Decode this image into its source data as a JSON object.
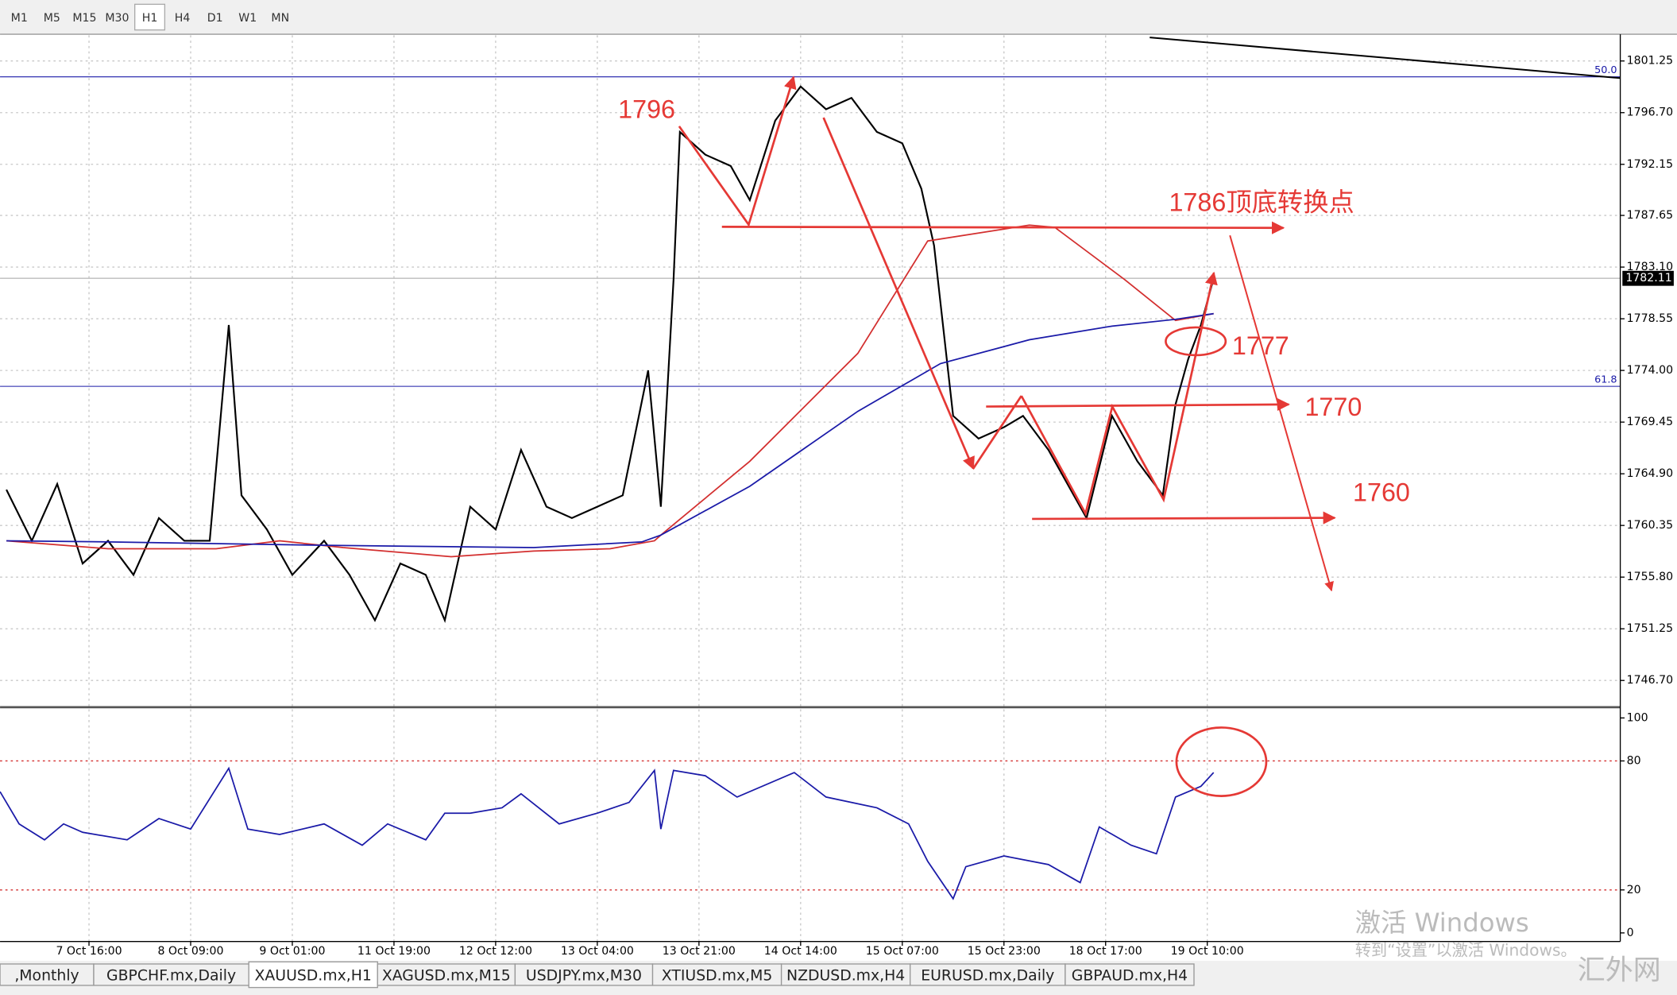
{
  "toolbar": {
    "timeframes": [
      "M1",
      "M5",
      "M15",
      "M30",
      "H1",
      "H4",
      "D1",
      "W1",
      "MN"
    ],
    "active": 4
  },
  "tabs": {
    "items": [
      ",Monthly",
      "GBPCHF.mx,Daily",
      "XAUUSD.mx,H1",
      "XAGUSD.mx,M15",
      "USDJPY.mx,M30",
      "XTIUSD.mx,M5",
      "NZDUSD.mx,H4",
      "EURUSD.mx,Daily",
      "GBPAUD.mx,H4"
    ],
    "active": 2
  },
  "watermark": {
    "line1": "激活 Windows",
    "line2": "转到“设置”以激活 Windows。",
    "brand": "汇外网"
  },
  "chart_data": [
    {
      "type": "line",
      "xlim": [
        -14,
        241
      ],
      "ylim": [
        1744.44,
        1803.51
      ],
      "yticks": [
        1801.25,
        {
          "value": 1796.7,
          "label": "1796.70"
        },
        1792.15,
        1787.65,
        {
          "value": 1783.1,
          "label": "1783.10"
        },
        1778.55,
        {
          "value": 1774.0,
          "label": "1774.00"
        },
        1769.45,
        {
          "value": 1764.9,
          "label": "1764.90"
        },
        1760.35,
        {
          "value": 1755.8,
          "label": "1755.80"
        },
        1751.25,
        {
          "value": 1746.7,
          "label": "1746.70"
        }
      ],
      "xticks": [
        {
          "value": 0,
          "label": "7 Oct 16:00"
        },
        {
          "value": 16,
          "label": "8 Oct 09:00"
        },
        {
          "value": 32,
          "label": "9 Oct 01:00"
        },
        {
          "value": 48,
          "label": "11 Oct 19:00"
        },
        {
          "value": 64,
          "label": "12 Oct 12:00"
        },
        {
          "value": 80,
          "label": "13 Oct 04:00"
        },
        {
          "value": 96,
          "label": "13 Oct 21:00"
        },
        {
          "value": 112,
          "label": "14 Oct 14:00"
        },
        {
          "value": 128,
          "label": "15 Oct 07:00"
        },
        {
          "value": 144,
          "label": "15 Oct 23:00"
        },
        {
          "value": 160,
          "label": "18 Oct 17:00"
        },
        {
          "value": 176,
          "label": "19 Oct 10:00"
        }
      ],
      "grid": true,
      "last_price": 1782.11,
      "fib_levels": [
        {
          "value": 1799.85,
          "label": "50.0"
        },
        {
          "value": 1772.6,
          "label": "61.8"
        }
      ],
      "series": [
        {
          "color": "#000000",
          "x": [
            -13,
            -9,
            -5,
            -1,
            3,
            7,
            11,
            15,
            19,
            22,
            24,
            28,
            32,
            37,
            41,
            45,
            49,
            53,
            56,
            60,
            64,
            68,
            72,
            76,
            80,
            84,
            88,
            90,
            92,
            93,
            97,
            101,
            104,
            108,
            112,
            116,
            120,
            124,
            128,
            131,
            133,
            136,
            140,
            144,
            147,
            151,
            155,
            157,
            161,
            165,
            169,
            171,
            173,
            175,
            177
          ],
          "values": [
            1763.5,
            1759,
            1764,
            1757,
            1759,
            1756,
            1761,
            1759,
            1759,
            1778,
            1763,
            1760,
            1756,
            1759,
            1756,
            1752,
            1757,
            1756,
            1752,
            1762,
            1760,
            1767,
            1762,
            1761,
            1762,
            1763,
            1774,
            1762,
            1782,
            1795,
            1793,
            1792,
            1789,
            1796,
            1799,
            1797,
            1798,
            1795,
            1794,
            1790,
            1785,
            1770,
            1768,
            1769,
            1770,
            1767,
            1763,
            1761,
            1770,
            1766,
            1763,
            1771,
            1775,
            1778,
            1782.11
          ]
        },
        {
          "color": "#d32f2f",
          "x": [
            -13,
            3,
            20,
            30,
            40,
            57,
            70,
            82,
            89,
            90,
            104,
            121,
            132,
            148,
            152,
            163,
            171,
            177
          ],
          "values": [
            1759,
            1758.3,
            1758.3,
            1759,
            1758.4,
            1757.6,
            1758.1,
            1758.3,
            1759,
            1759.5,
            1766,
            1775.5,
            1785.4,
            1786.8,
            1786.6,
            1782,
            1778.4,
            1779
          ]
        },
        {
          "color": "#1a1aa8",
          "x": [
            -13,
            3,
            37,
            70,
            87,
            90,
            104,
            121,
            134,
            148,
            161,
            171,
            177
          ],
          "values": [
            1759,
            1758.9,
            1758.6,
            1758.4,
            1758.9,
            1759.5,
            1763.8,
            1770.4,
            1774.6,
            1776.7,
            1777.9,
            1778.5,
            1779
          ]
        }
      ],
      "annotations": [
        "1796",
        "1786顶底转换点",
        "1777",
        "1770",
        "1760"
      ]
    },
    {
      "type": "line",
      "xlim": [
        -14,
        241
      ],
      "ylim": [
        -4,
        104
      ],
      "yticks": [
        100,
        80,
        20,
        0
      ],
      "levels": [
        80,
        20
      ],
      "series": [
        {
          "color": "#1a1aa8",
          "x": [
            -14,
            -11,
            -7,
            -4,
            -1,
            6,
            11,
            16,
            22,
            25,
            30,
            37,
            43,
            47,
            53,
            56,
            60,
            65,
            68,
            74,
            80,
            85,
            89,
            90,
            92,
            97,
            102,
            111,
            116,
            124,
            129,
            132,
            136,
            138,
            144,
            151,
            156,
            159,
            164,
            168,
            171,
            175,
            177
          ],
          "values": [
            65.7,
            50.7,
            43.3,
            50.7,
            46.8,
            43.3,
            53.2,
            48.3,
            76.6,
            48.3,
            45.8,
            50.7,
            40.8,
            50.7,
            43.3,
            55.7,
            55.7,
            58.2,
            64.7,
            50.7,
            55.7,
            60.7,
            75.6,
            48.3,
            75.6,
            73.1,
            63.2,
            74.6,
            63.2,
            58.2,
            50.7,
            33.3,
            15.9,
            30.8,
            35.8,
            31.8,
            23.4,
            49.3,
            40.8,
            36.8,
            63.2,
            68.2,
            74.6
          ]
        }
      ]
    }
  ]
}
